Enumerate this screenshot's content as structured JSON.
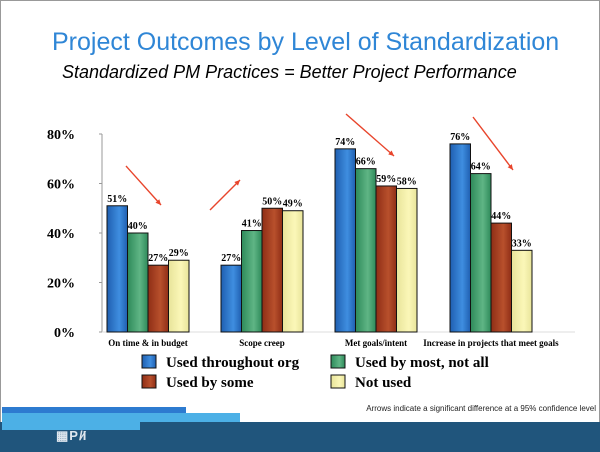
{
  "slide": {
    "title": "Project Outcomes by Level of Standardization",
    "subtitle": "Standardized PM Practices = Better Project Performance",
    "note": "Arrows indicate a significant difference at a 95% confidence level",
    "logo": "PMI"
  },
  "chart_data": {
    "type": "bar",
    "title": "",
    "xlabel": "",
    "ylabel": "",
    "ylim": [
      0,
      80
    ],
    "yticks": [
      "0%",
      "20%",
      "40%",
      "60%",
      "80%"
    ],
    "ytick_values": [
      0,
      20,
      40,
      60,
      80
    ],
    "grid": false,
    "legend_position": "bottom",
    "categories": [
      "On time & in budget",
      "Scope creep",
      "Met goals/intent",
      "Increase in projects that meet goals"
    ],
    "series": [
      {
        "name": "Used throughout org",
        "color": "#1f5fb0",
        "values": [
          51,
          27,
          74,
          76
        ],
        "labels": [
          "51%",
          "27%",
          "74%",
          "76%"
        ]
      },
      {
        "name": "Used by most, not all",
        "color": "#2e8a5a",
        "values": [
          40,
          41,
          66,
          64
        ],
        "labels": [
          "40%",
          "41%",
          "66%",
          "64%"
        ]
      },
      {
        "name": "Used by some",
        "color": "#8f2e16",
        "values": [
          27,
          50,
          59,
          44
        ],
        "labels": [
          "27%",
          "50%",
          "59%",
          "44%"
        ]
      },
      {
        "name": "Not used",
        "color": "#e8e49a",
        "values": [
          29,
          49,
          58,
          33
        ],
        "labels": [
          "29%",
          "49%",
          "58%",
          "33%"
        ]
      }
    ],
    "arrow_color": "#e8452c",
    "arrows": [
      {
        "category": "On time & in budget",
        "direction": "down"
      },
      {
        "category": "Scope creep",
        "direction": "up"
      },
      {
        "category": "Met goals/intent",
        "direction": "down"
      },
      {
        "category": "Increase in projects that meet goals",
        "direction": "down"
      }
    ]
  }
}
